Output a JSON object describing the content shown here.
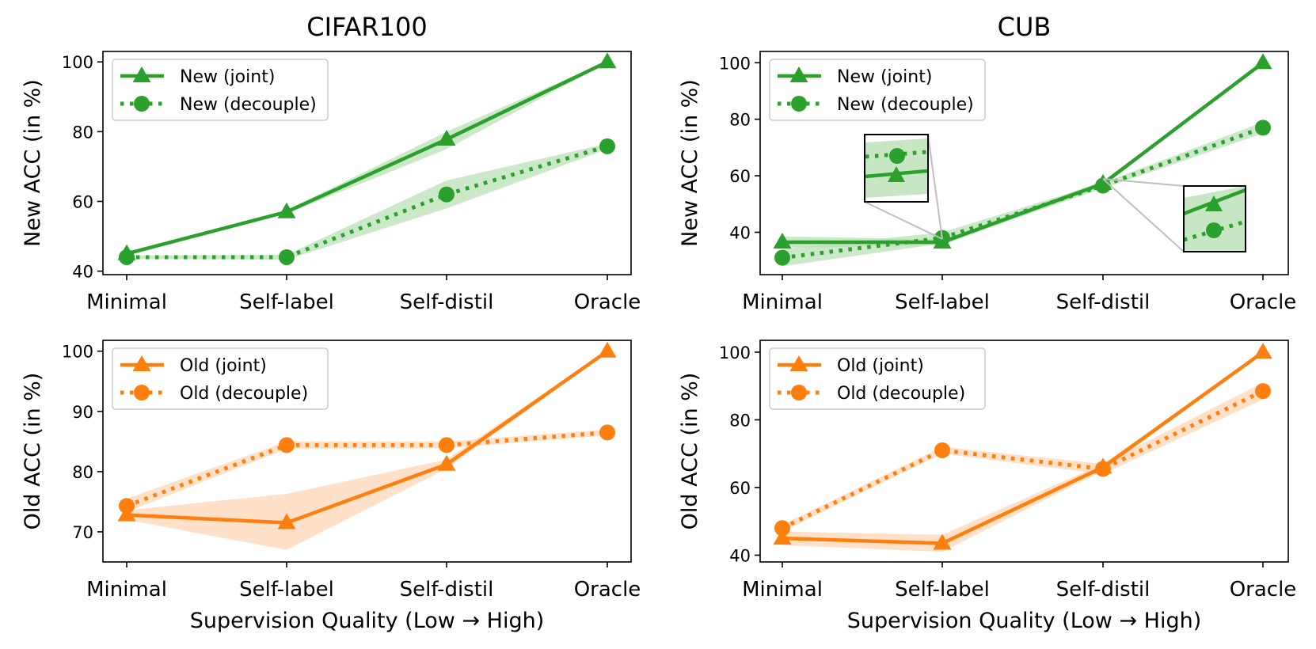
{
  "figure": {
    "xlabel": "Supervision Quality (Low → High)"
  },
  "colors": {
    "new": "#2ca02c",
    "old": "#ff7f0e",
    "band_new": "#b9e0b5",
    "band_old": "#ffd5b5",
    "inset_line": "#bfbfbf"
  },
  "chart_data": [
    {
      "id": "cifar-new",
      "type": "line",
      "title": "CIFAR100",
      "xlabel": "",
      "ylabel": "New ACC (in %)",
      "categories": [
        "Minimal",
        "Self-label",
        "Self-distil",
        "Oracle"
      ],
      "yticks": [
        40,
        60,
        80,
        100
      ],
      "ylim": [
        39,
        103
      ],
      "legend_loc": "top-left",
      "series": [
        {
          "name": "New (joint)",
          "style": "solid",
          "marker": "triangle",
          "color_key": "new",
          "values": [
            45,
            57,
            77.8,
            100
          ],
          "band_lo": [
            44.5,
            56.5,
            75,
            99.8
          ],
          "band_hi": [
            45.5,
            57.5,
            80,
            100.2
          ]
        },
        {
          "name": "New (decouple)",
          "style": "dotted",
          "marker": "circle",
          "color_key": "new",
          "values": [
            44,
            44,
            62,
            75.8
          ],
          "band_lo": [
            43.5,
            43.3,
            58,
            75
          ],
          "band_hi": [
            44.5,
            44.7,
            66,
            76.6
          ]
        }
      ]
    },
    {
      "id": "cub-new",
      "type": "line",
      "title": "CUB",
      "xlabel": "",
      "ylabel": "New ACC (in %)",
      "categories": [
        "Minimal",
        "Self-label",
        "Self-distil",
        "Oracle"
      ],
      "yticks": [
        40,
        60,
        80,
        100
      ],
      "ylim": [
        25,
        104
      ],
      "legend_loc": "top-left",
      "insets": true,
      "series": [
        {
          "name": "New (joint)",
          "style": "solid",
          "marker": "triangle",
          "color_key": "new",
          "values": [
            36.5,
            36.5,
            57.2,
            100
          ],
          "band_lo": [
            34.5,
            35.5,
            56.2,
            99.8
          ],
          "band_hi": [
            38.5,
            37.5,
            58.2,
            100.2
          ]
        },
        {
          "name": "New (decouple)",
          "style": "dotted",
          "marker": "circle",
          "color_key": "new",
          "values": [
            31,
            38,
            56.5,
            77
          ],
          "band_lo": [
            28,
            36,
            55.5,
            75
          ],
          "band_hi": [
            34,
            40,
            57.5,
            79
          ]
        }
      ]
    },
    {
      "id": "cifar-old",
      "type": "line",
      "title": "",
      "xlabel": "Supervision Quality (Low → High)",
      "ylabel": "Old ACC (in %)",
      "categories": [
        "Minimal",
        "Self-label",
        "Self-distil",
        "Oracle"
      ],
      "yticks": [
        70,
        80,
        90,
        100
      ],
      "ylim": [
        65,
        101.8
      ],
      "legend_loc": "top-left",
      "series": [
        {
          "name": "Old (joint)",
          "style": "solid",
          "marker": "triangle",
          "color_key": "old",
          "values": [
            72.8,
            71.5,
            81.2,
            100
          ],
          "band_lo": [
            72,
            67,
            80.5,
            99.8
          ],
          "band_hi": [
            73.6,
            76.3,
            82,
            100.2
          ]
        },
        {
          "name": "Old (decouple)",
          "style": "dotted",
          "marker": "circle",
          "color_key": "old",
          "values": [
            74.3,
            84.4,
            84.4,
            86.5
          ],
          "band_lo": [
            73.3,
            83.8,
            83.9,
            86
          ],
          "band_hi": [
            75.5,
            85,
            85,
            87
          ]
        }
      ]
    },
    {
      "id": "cub-old",
      "type": "line",
      "title": "",
      "xlabel": "Supervision Quality (Low → High)",
      "ylabel": "Old ACC (in %)",
      "categories": [
        "Minimal",
        "Self-label",
        "Self-distil",
        "Oracle"
      ],
      "yticks": [
        40,
        60,
        80,
        100
      ],
      "ylim": [
        38,
        103.5
      ],
      "legend_loc": "top-left",
      "series": [
        {
          "name": "Old (joint)",
          "style": "solid",
          "marker": "triangle",
          "color_key": "old",
          "values": [
            45,
            43.5,
            66,
            100
          ],
          "band_lo": [
            43,
            41,
            65,
            99.8
          ],
          "band_hi": [
            47,
            46,
            67,
            100.2
          ]
        },
        {
          "name": "Old (decouple)",
          "style": "dotted",
          "marker": "circle",
          "color_key": "old",
          "values": [
            48,
            71,
            65.5,
            88.5
          ],
          "band_lo": [
            47,
            70,
            64,
            86
          ],
          "band_hi": [
            49,
            72,
            67,
            91
          ]
        }
      ]
    }
  ]
}
